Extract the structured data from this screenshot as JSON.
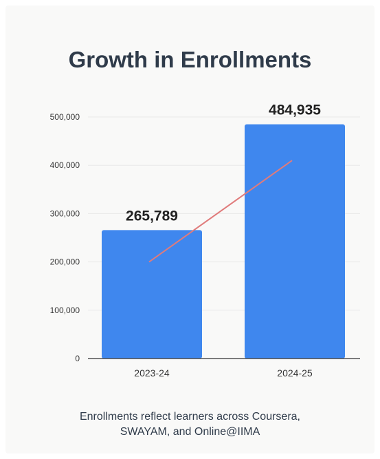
{
  "chart_data": {
    "type": "bar",
    "title": "Growth in Enrollments",
    "categories": [
      "2023-24",
      "2024-25"
    ],
    "values": [
      265789,
      484935
    ],
    "data_labels": [
      "265,789",
      "484,935"
    ],
    "ylim": [
      0,
      500000
    ],
    "yticks": [
      0,
      100000,
      200000,
      300000,
      400000,
      500000
    ],
    "ytick_labels": [
      "0",
      "100,000",
      "200,000",
      "300,000",
      "400,000",
      "500,000"
    ],
    "xlabel": "",
    "ylabel": "",
    "grid": true,
    "trend_line": {
      "from_value": 200000,
      "to_value": 410000
    },
    "colors": {
      "bar": "#3f87ee",
      "trend": "#e07b7b",
      "grid": "#e9e9e9",
      "axis": "#333333"
    }
  },
  "caption": {
    "line1": "Enrollments reflect learners across Coursera,",
    "line2": "SWAYAM, and Online@IIMA"
  }
}
